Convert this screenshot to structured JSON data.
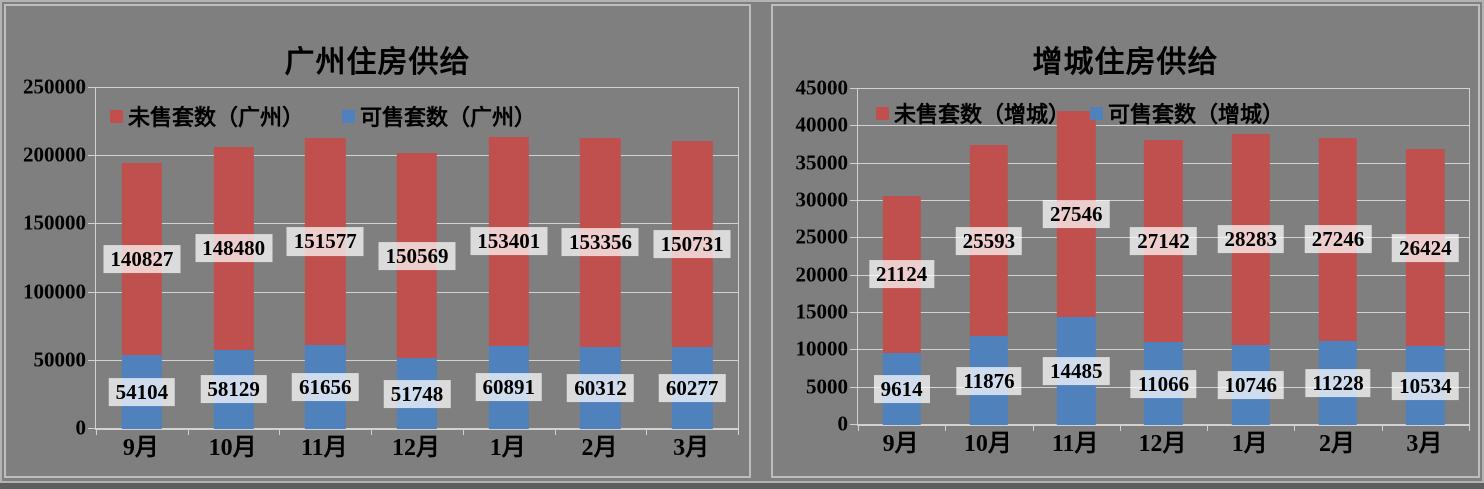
{
  "window": {
    "background": "#7F7F7F",
    "frame_color": "#B3B3B3",
    "panel_border_color": "#BDBDBD",
    "bottom_shade_color": "#5E5E5E",
    "gridline_color": "#D2D2D2",
    "label_background": "rgba(255,255,255,0.72)",
    "text_color": "#000000"
  },
  "chart_data": [
    {
      "type": "bar",
      "stacked": true,
      "title": "广州住房供给",
      "categories": [
        "9月",
        "10月",
        "11月",
        "12月",
        "1月",
        "2月",
        "3月"
      ],
      "series": [
        {
          "name": "未售套数（广州）",
          "color": "#C0504D",
          "values": [
            140827,
            148480,
            151577,
            150569,
            153401,
            153356,
            150731
          ]
        },
        {
          "name": "可售套数（广州）",
          "color": "#4F81BD",
          "values": [
            54104,
            58129,
            61656,
            51748,
            60891,
            60312,
            60277
          ]
        }
      ],
      "stack_order": "second_series_at_bottom",
      "ylim": [
        0,
        250000
      ],
      "y_step": 50000,
      "y_ticks": [
        "0",
        "50000",
        "100000",
        "150000",
        "200000",
        "250000"
      ],
      "grid": true,
      "legend_position": "top-inside",
      "data_labels": "centered-in-segment"
    },
    {
      "type": "bar",
      "stacked": true,
      "title": "增城住房供给",
      "categories": [
        "9月",
        "10月",
        "11月",
        "12月",
        "1月",
        "2月",
        "3月"
      ],
      "series": [
        {
          "name": "未售套数（增城）",
          "color": "#C0504D",
          "values": [
            21124,
            25593,
            27546,
            27142,
            28283,
            27246,
            26424
          ]
        },
        {
          "name": "可售套数（增城）",
          "color": "#4F81BD",
          "values": [
            9614,
            11876,
            14485,
            11066,
            10746,
            11228,
            10534
          ]
        }
      ],
      "stack_order": "second_series_at_bottom",
      "ylim": [
        0,
        45000
      ],
      "y_step": 5000,
      "y_ticks": [
        "0",
        "5000",
        "10000",
        "15000",
        "20000",
        "25000",
        "30000",
        "35000",
        "40000",
        "45000"
      ],
      "grid": true,
      "legend_position": "top-inside",
      "data_labels": "centered-in-segment"
    }
  ]
}
